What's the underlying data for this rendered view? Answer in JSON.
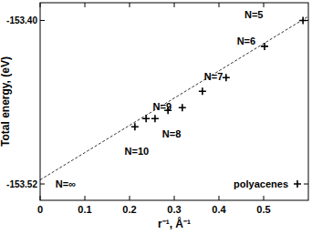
{
  "chart_data": {
    "type": "scatter",
    "x_label": "r⁻¹, Å⁻¹",
    "y_label": "Total energy, (eV)",
    "xlim": [
      0,
      0.6
    ],
    "ylim": [
      -153.532,
      -153.387
    ],
    "xticks": [
      0,
      0.1,
      0.2,
      0.3,
      0.4,
      0.5
    ],
    "yticks": [
      {
        "value": -153.4,
        "label": "-153.40"
      },
      -153.52
    ],
    "grid": false,
    "legend": "lower right",
    "series": [
      {
        "name": "polyacenes",
        "type": "scatter",
        "marker": "plus",
        "color": "#000000",
        "x": [
          0.588,
          0.502,
          0.416,
          0.363,
          0.318,
          0.286,
          0.257,
          0.237,
          0.212
        ],
        "values": [
          -153.4,
          -153.419,
          -153.442,
          -153.452,
          -153.464,
          -153.466,
          -153.472,
          -153.472,
          -153.478
        ]
      },
      {
        "type": "line",
        "line_style": "dashed",
        "color": "#000000",
        "x": [
          0,
          0.6
        ],
        "values": [
          -153.517,
          -153.397
        ]
      }
    ],
    "annotations": [
      {
        "text": "N=5",
        "x": 0.478,
        "y": -153.396
      },
      {
        "text": "N=6",
        "x": 0.461,
        "y": -153.415
      },
      {
        "text": "N=7",
        "x": 0.388,
        "y": -153.441
      },
      {
        "text": "N=9",
        "x": 0.273,
        "y": -153.463
      },
      {
        "text": "N=8",
        "x": 0.294,
        "y": -153.483
      },
      {
        "text": "N=10",
        "x": 0.216,
        "y": -153.496
      },
      {
        "text": "N=∞",
        "x": 0.057,
        "y": -153.52
      }
    ]
  }
}
